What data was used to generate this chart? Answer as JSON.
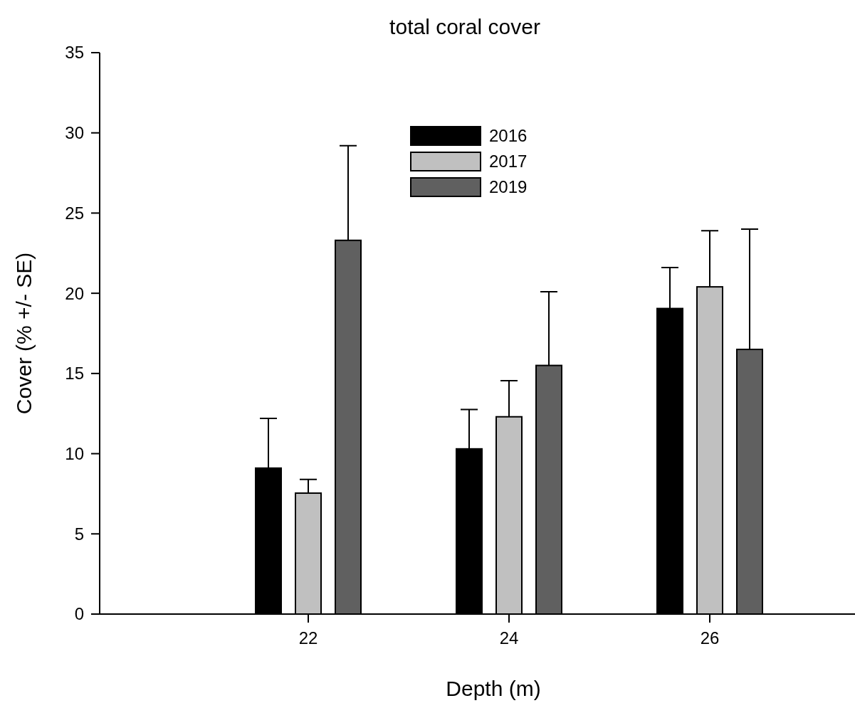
{
  "chart_data": {
    "type": "bar",
    "title": "total coral cover",
    "xlabel": "Depth (m)",
    "ylabel": "Cover (% +/- SE)",
    "categories": [
      "22",
      "24",
      "26"
    ],
    "series": [
      {
        "name": "2016",
        "color": "#000000",
        "values": [
          9.1,
          10.3,
          19.05
        ],
        "errors": [
          [
            9.1,
            12.2
          ],
          [
            10.3,
            12.75
          ],
          [
            19.05,
            21.6
          ]
        ]
      },
      {
        "name": "2017",
        "color": "#c0c0c0",
        "values": [
          7.54,
          12.3,
          20.4
        ],
        "errors": [
          [
            7.54,
            8.4
          ],
          [
            12.3,
            14.55
          ],
          [
            20.4,
            23.9
          ]
        ]
      },
      {
        "name": "2019",
        "color": "#606060",
        "values": [
          23.3,
          15.5,
          16.5
        ],
        "errors": [
          [
            23.3,
            29.2
          ],
          [
            15.5,
            20.1
          ],
          [
            16.5,
            24.0
          ]
        ]
      }
    ],
    "ylim": [
      0,
      35
    ],
    "yticks": [
      0,
      5,
      10,
      15,
      20,
      25,
      30,
      35
    ],
    "grid": false,
    "legend": "top"
  }
}
